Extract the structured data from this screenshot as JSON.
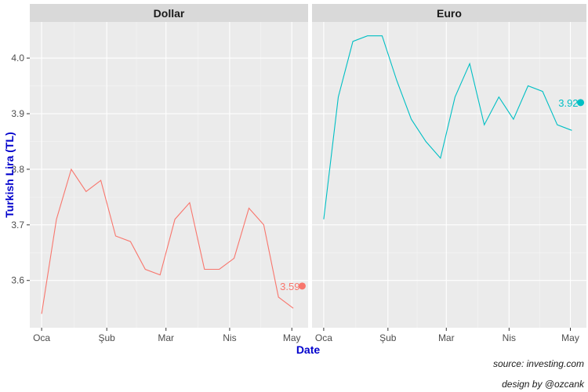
{
  "chart_data": {
    "type": "line",
    "ylabel": "Turkish Lira (TL)",
    "xlabel": "Date",
    "ylim": [
      3.515,
      4.065
    ],
    "y_ticks": [
      "3.6",
      "3.7",
      "3.8",
      "3.9",
      "4.0"
    ],
    "y_tick_values": [
      3.6,
      3.7,
      3.8,
      3.9,
      4.0
    ],
    "x_ticks": [
      "Oca",
      "Şub",
      "Mar",
      "Nis",
      "May"
    ],
    "x_tick_positions": [
      0,
      4.4,
      8.4,
      12.7,
      16.9
    ],
    "xlim": [
      -0.8,
      18.0
    ],
    "grid": true,
    "panels": [
      {
        "title": "Dollar",
        "color": "#F8766D",
        "x": [
          0,
          1,
          2,
          3,
          4,
          5,
          6,
          7,
          8,
          9,
          10,
          11,
          12,
          13,
          14,
          15,
          16,
          17
        ],
        "values": [
          3.54,
          3.71,
          3.8,
          3.76,
          3.78,
          3.68,
          3.67,
          3.62,
          3.61,
          3.71,
          3.74,
          3.62,
          3.62,
          3.64,
          3.73,
          3.7,
          3.57,
          3.55
        ],
        "end_point": {
          "x": 17.6,
          "y": 3.59,
          "label": "3.59"
        }
      },
      {
        "title": "Euro",
        "color": "#00BFC4",
        "x": [
          0,
          1,
          2,
          3,
          4,
          5,
          6,
          7,
          8,
          9,
          10,
          11,
          12,
          13,
          14,
          15,
          16,
          17
        ],
        "values": [
          3.71,
          3.93,
          4.03,
          4.04,
          4.04,
          3.96,
          3.89,
          3.85,
          3.82,
          3.93,
          3.99,
          3.88,
          3.93,
          3.89,
          3.95,
          3.94,
          3.88,
          3.87
        ],
        "end_point": {
          "x": 17.6,
          "y": 3.92,
          "label": "3.92"
        }
      }
    ]
  },
  "captions": {
    "source": "source: investing.com",
    "design": "design by @ozcank"
  }
}
